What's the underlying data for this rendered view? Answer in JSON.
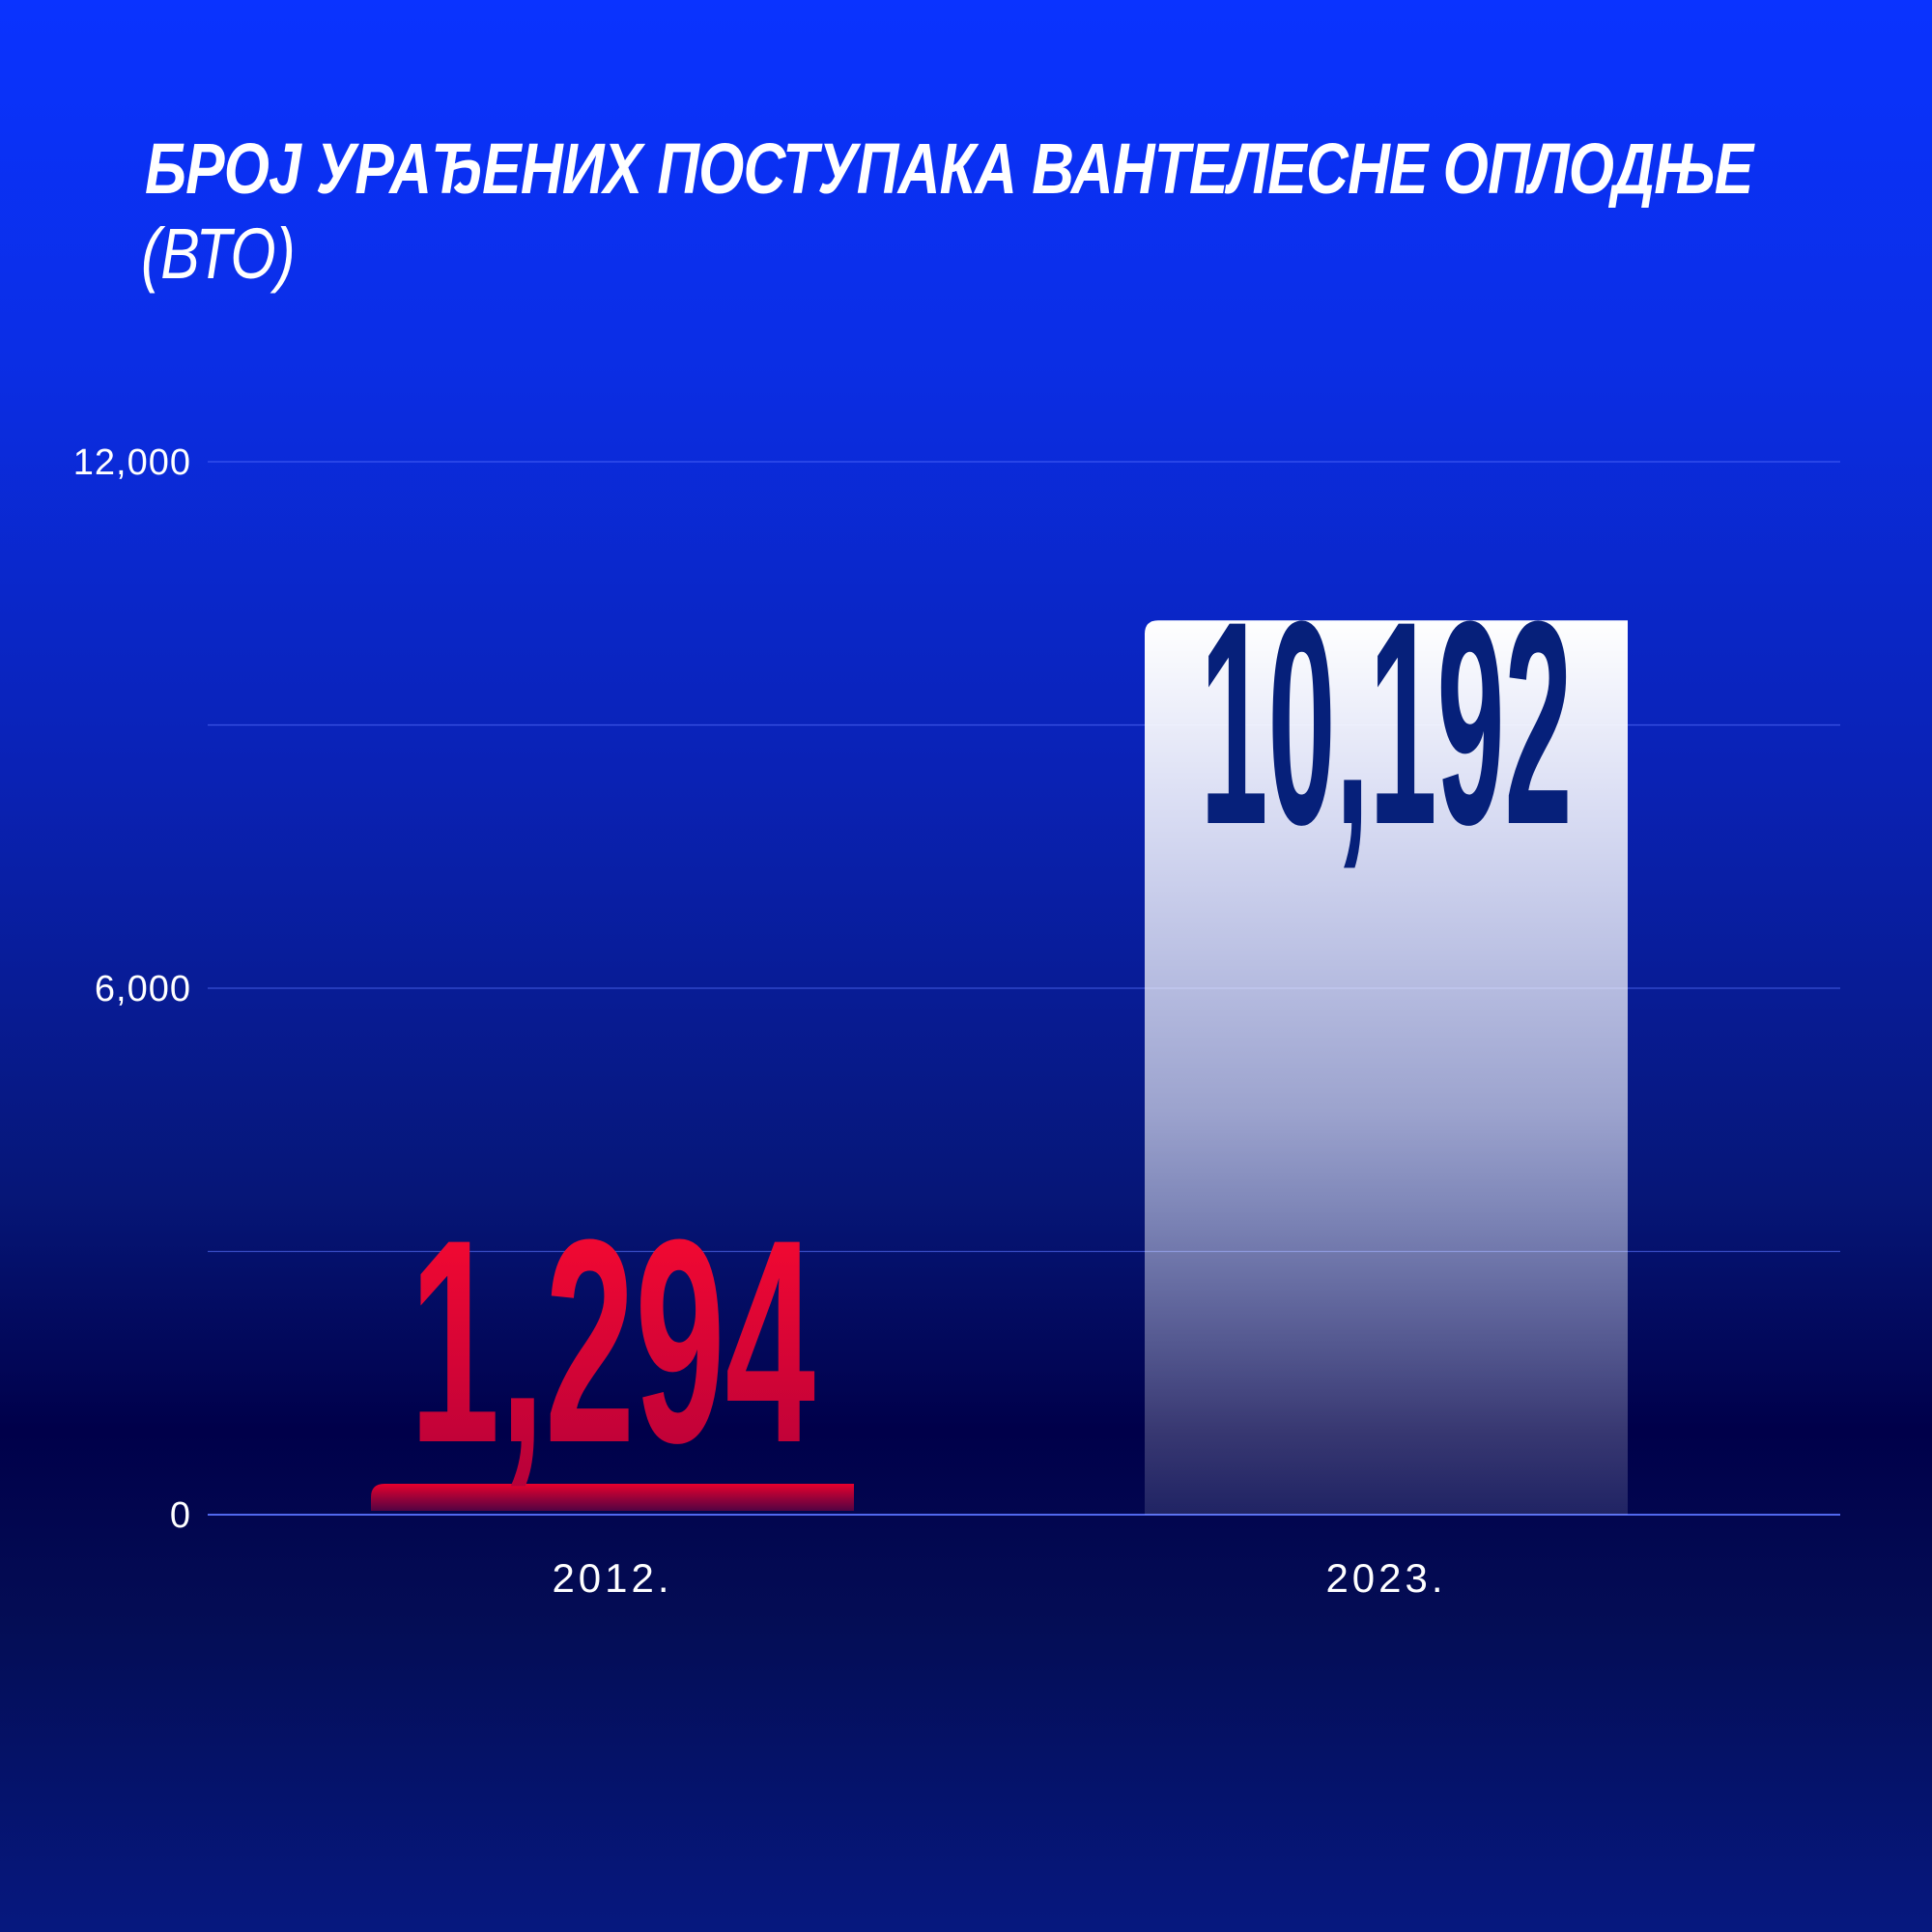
{
  "header": {
    "title": "БРОЈ УРАЂЕНИХ ПОСТУПАКА ВАНТЕЛЕСНЕ ОПЛОДЊЕ",
    "subtitle": "(ВТО)"
  },
  "colors": {
    "bar_2012": "#e8002d",
    "bar_2023": "#ffffff",
    "value_2012": "#ff0a30",
    "value_2023": "#06207a",
    "gridline": "#5a73ff"
  },
  "chart_data": {
    "type": "bar",
    "categories": [
      "2012.",
      "2023."
    ],
    "values": [
      1294,
      10192
    ],
    "value_labels": [
      "1,294",
      "10,192"
    ],
    "title": "БРОЈ УРАЂЕНИХ ПОСТУПАКА ВАНТЕЛЕСНЕ ОПЛОДЊЕ",
    "subtitle": "(ВТО)",
    "xlabel": "",
    "ylabel": "",
    "ylim": [
      0,
      12000
    ],
    "y_ticks": [
      0,
      6000,
      12000
    ],
    "y_tick_labels": [
      "0",
      "6,000",
      "12,000"
    ],
    "grid": true,
    "legend": "none"
  }
}
